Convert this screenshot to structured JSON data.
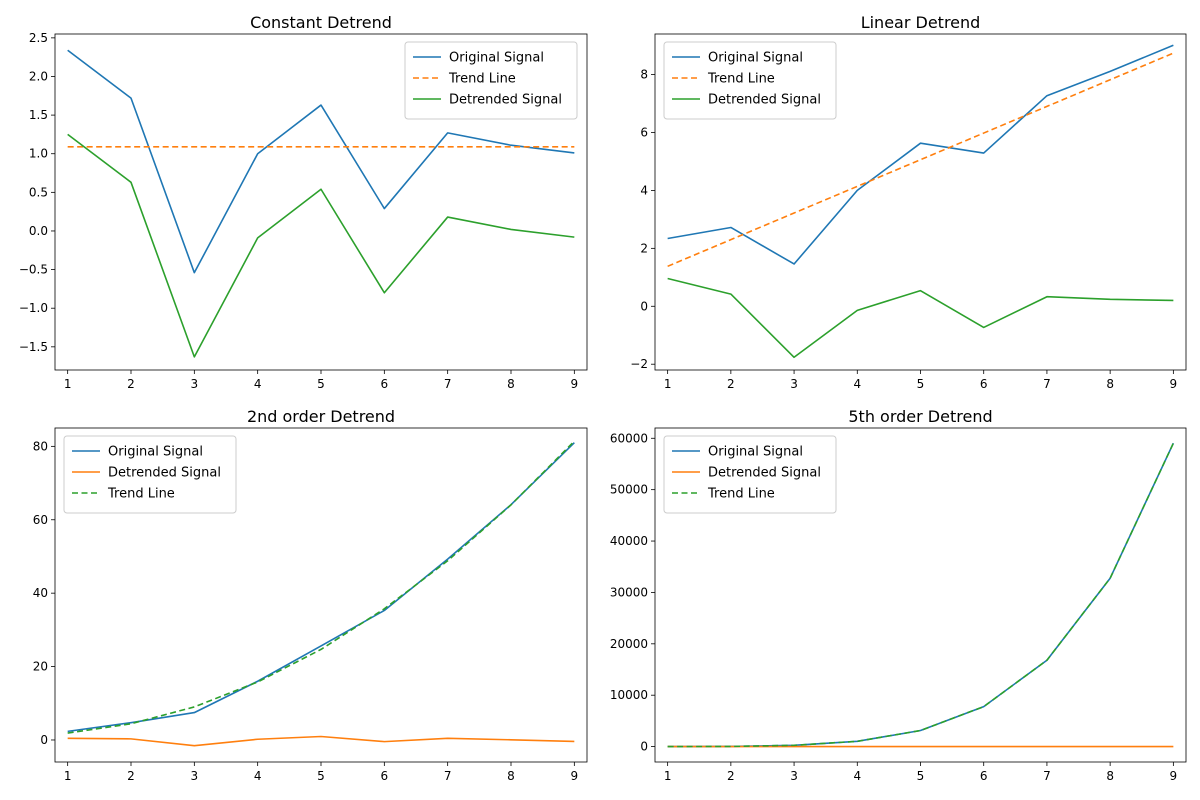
{
  "chart_data": [
    {
      "type": "line",
      "title": "Constant Detrend",
      "xlabel": "",
      "ylabel": "",
      "x": [
        1,
        2,
        3,
        4,
        5,
        6,
        7,
        8,
        9
      ],
      "xlim": [
        0.8,
        9.2
      ],
      "ylim": [
        -1.8,
        2.55
      ],
      "yticks": [
        -1.5,
        -1.0,
        -0.5,
        0.0,
        0.5,
        1.0,
        1.5,
        2.0,
        2.5
      ],
      "ytick_labels": [
        "−1.5",
        "−1.0",
        "−0.5",
        "0.0",
        "0.5",
        "1.0",
        "1.5",
        "2.0",
        "2.5"
      ],
      "legend_loc": "top-right",
      "grid": false,
      "series": [
        {
          "name": "Original Signal",
          "color": "#1f77b4",
          "style": "solid",
          "values": [
            2.34,
            1.72,
            -0.54,
            1.0,
            1.63,
            0.29,
            1.27,
            1.11,
            1.01
          ]
        },
        {
          "name": "Trend Line",
          "color": "#ff7f0e",
          "style": "dashed",
          "values": [
            1.09,
            1.09,
            1.09,
            1.09,
            1.09,
            1.09,
            1.09,
            1.09,
            1.09
          ]
        },
        {
          "name": "Detrended Signal",
          "color": "#2ca02c",
          "style": "solid",
          "values": [
            1.25,
            0.63,
            -1.63,
            -0.09,
            0.54,
            -0.8,
            0.18,
            0.02,
            -0.08
          ]
        }
      ]
    },
    {
      "type": "line",
      "title": "Linear Detrend",
      "xlabel": "",
      "ylabel": "",
      "x": [
        1,
        2,
        3,
        4,
        5,
        6,
        7,
        8,
        9
      ],
      "xlim": [
        0.8,
        9.2
      ],
      "ylim": [
        -2.2,
        9.4
      ],
      "yticks": [
        -2,
        0,
        2,
        4,
        6,
        8
      ],
      "ytick_labels": [
        "−2",
        "0",
        "2",
        "4",
        "6",
        "8"
      ],
      "legend_loc": "top-left",
      "grid": false,
      "series": [
        {
          "name": "Original Signal",
          "color": "#1f77b4",
          "style": "solid",
          "values": [
            2.34,
            2.72,
            1.46,
            4.0,
            5.63,
            5.29,
            7.27,
            8.11,
            9.01
          ]
        },
        {
          "name": "Trend Line",
          "color": "#ff7f0e",
          "style": "dashed",
          "values": [
            1.38,
            2.3,
            3.22,
            4.14,
            5.06,
            5.98,
            6.9,
            7.82,
            8.74
          ]
        },
        {
          "name": "Detrended Signal",
          "color": "#2ca02c",
          "style": "solid",
          "values": [
            0.96,
            0.42,
            -1.76,
            -0.14,
            0.54,
            -0.73,
            0.33,
            0.24,
            0.2
          ]
        }
      ]
    },
    {
      "type": "line",
      "title": "2nd order Detrend",
      "xlabel": "",
      "ylabel": "",
      "x": [
        1,
        2,
        3,
        4,
        5,
        6,
        7,
        8,
        9
      ],
      "xlim": [
        0.8,
        9.2
      ],
      "ylim": [
        -6,
        85
      ],
      "yticks": [
        0,
        20,
        40,
        60,
        80
      ],
      "ytick_labels": [
        "0",
        "20",
        "40",
        "60",
        "80"
      ],
      "legend_loc": "top-left",
      "grid": false,
      "series": [
        {
          "name": "Original Signal",
          "color": "#1f77b4",
          "style": "solid",
          "values": [
            2.34,
            4.72,
            7.46,
            16.0,
            25.63,
            35.29,
            49.27,
            64.11,
            81.01
          ]
        },
        {
          "name": "Detrended Signal",
          "color": "#ff7f0e",
          "style": "solid",
          "values": [
            0.45,
            0.3,
            -1.55,
            0.2,
            0.95,
            -0.45,
            0.45,
            0.05,
            -0.4
          ]
        },
        {
          "name": "Trend Line",
          "color": "#2ca02c",
          "style": "dashed",
          "values": [
            1.89,
            4.42,
            9.01,
            15.8,
            24.68,
            35.74,
            48.82,
            64.06,
            81.41
          ]
        }
      ]
    },
    {
      "type": "line",
      "title": "5th order Detrend",
      "xlabel": "",
      "ylabel": "",
      "x": [
        1,
        2,
        3,
        4,
        5,
        6,
        7,
        8,
        9
      ],
      "xlim": [
        0.8,
        9.2
      ],
      "ylim": [
        -3000,
        62000
      ],
      "yticks": [
        0,
        10000,
        20000,
        30000,
        40000,
        50000,
        60000
      ],
      "ytick_labels": [
        "0",
        "10000",
        "20000",
        "30000",
        "40000",
        "50000",
        "60000"
      ],
      "legend_loc": "top-left",
      "grid": false,
      "series": [
        {
          "name": "Original Signal",
          "color": "#1f77b4",
          "style": "solid",
          "values": [
            2,
            33,
            244,
            1025,
            3126,
            7777,
            16808,
            32769,
            59050
          ]
        },
        {
          "name": "Detrended Signal",
          "color": "#ff7f0e",
          "style": "solid",
          "values": [
            0,
            0,
            0,
            0,
            0,
            0,
            0,
            0,
            0
          ]
        },
        {
          "name": "Trend Line",
          "color": "#2ca02c",
          "style": "dashed",
          "values": [
            2,
            33,
            244,
            1025,
            3126,
            7777,
            16808,
            32769,
            59050
          ]
        }
      ]
    }
  ]
}
